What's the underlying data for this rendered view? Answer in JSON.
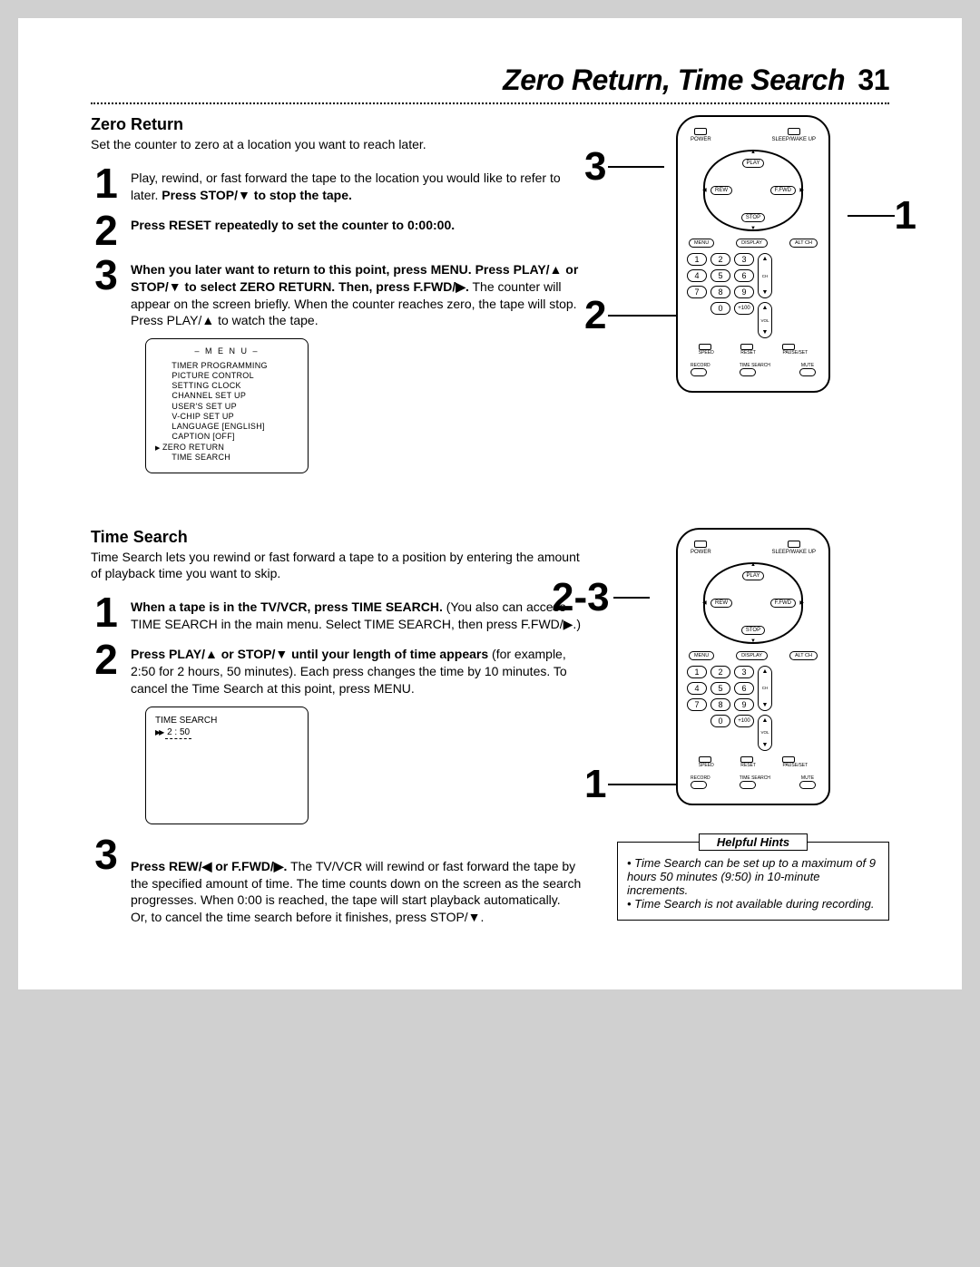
{
  "page": {
    "title": "Zero Return, Time Search",
    "page_number": "31"
  },
  "zero_return": {
    "heading": "Zero Return",
    "intro": "Set the counter to zero at a location you want to reach later.",
    "steps": [
      {
        "num": "1",
        "text_before": "Play, rewind, or fast forward the tape to the location you would like to refer to later. ",
        "bold": "Press STOP/▼ to stop the tape."
      },
      {
        "num": "2",
        "bold": "Press RESET repeatedly to set the counter to 0:00:00."
      },
      {
        "num": "3",
        "bold": "When you later want to return to this point, press MENU. Press PLAY/▲ or STOP/▼ to select ZERO RETURN. Then, press F.FWD/▶.",
        "text_after": " The counter will appear on the screen briefly. When the counter reaches zero, the tape will stop. Press PLAY/▲ to watch the tape."
      }
    ],
    "menu": {
      "title": "– M E N U –",
      "items": [
        "TIMER PROGRAMMING",
        "PICTURE CONTROL",
        "SETTING CLOCK",
        "CHANNEL SET UP",
        "USER'S SET UP",
        "V-CHIP SET UP",
        "LANGUAGE [ENGLISH]",
        "CAPTION [OFF]",
        "ZERO RETURN",
        "TIME SEARCH"
      ],
      "selected_index": 8
    }
  },
  "time_search": {
    "heading": "Time Search",
    "intro": "Time Search lets you rewind or fast forward a tape to a position by entering the amount of playback time you want to skip.",
    "steps": [
      {
        "num": "1",
        "bold": "When a tape is in the TV/VCR, press TIME SEARCH.",
        "text_after": "  (You also can access TIME SEARCH in the main menu. Select TIME SEARCH, then press F.FWD/▶.)"
      },
      {
        "num": "2",
        "bold": "Press PLAY/▲ or STOP/▼ until your length of time appears",
        "text_after": " (for example, 2:50 for 2 hours, 50 minutes). Each press changes the time by 10 minutes. To cancel the Time Search at this point, press MENU."
      },
      {
        "num": "3",
        "bold": "Press REW/◀ or F.FWD/▶.",
        "text_after": " The TV/VCR will rewind or fast forward the tape by the specified amount of time. The time counts down on the screen as the search progresses. When 0:00 is reached, the tape will start playback automatically.\nOr, to cancel the time search before it finishes, press STOP/▼."
      }
    ],
    "display": {
      "label": "TIME SEARCH",
      "value_prefix": "▶",
      "value": "2 : 50"
    }
  },
  "hints": {
    "title": "Helpful Hints",
    "items": [
      "Time Search can be set up to a maximum of 9 hours 50 minutes (9:50) in 10-minute increments.",
      "Time Search is not available during recording."
    ]
  },
  "remote1": {
    "callouts": {
      "c1": "1",
      "c2": "2",
      "c3": "3"
    }
  },
  "remote2": {
    "callouts": {
      "c1": "1",
      "c23": "2-3"
    }
  },
  "remote_labels": {
    "power": "POWER",
    "sleep": "SLEEP/WAKE UP",
    "play": "PLAY",
    "stop": "STOP",
    "rew": "REW",
    "ffwd": "F.FWD",
    "menu": "MENU",
    "display": "DISPLAY",
    "altch": "ALT CH",
    "ch": "CH",
    "vol": "VOL",
    "speed": "SPEED",
    "reset": "RESET",
    "pauseset": "PAUSE/SET",
    "record": "RECORD",
    "timesearch": "TIME SEARCH",
    "mute": "MUTE",
    "plus100": "+100",
    "keys": [
      "1",
      "2",
      "3",
      "4",
      "5",
      "6",
      "7",
      "8",
      "9",
      "0"
    ]
  },
  "colors": {
    "page_bg": "#ffffff",
    "body_bg": "#d0d0d0",
    "text": "#000000"
  }
}
